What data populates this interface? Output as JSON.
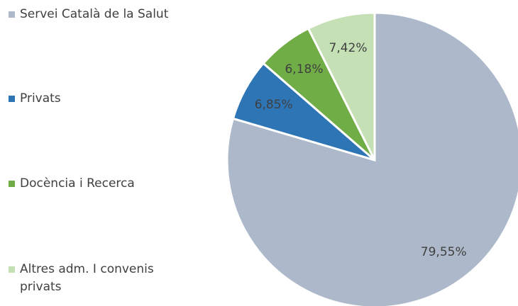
{
  "chart_data": {
    "type": "pie",
    "categories": [
      "Servei Català de la Salut",
      "Privats",
      "Docència i Recerca",
      "Altres adm. I convenis privats"
    ],
    "values": [
      79.55,
      6.85,
      6.18,
      7.42
    ],
    "value_labels": [
      "79,55%",
      "6,85%",
      "6,18%",
      "7,42%"
    ],
    "colors": [
      "#adb9ca",
      "#2e75b6",
      "#70ad47",
      "#c5e0b4"
    ],
    "legend": "left"
  }
}
